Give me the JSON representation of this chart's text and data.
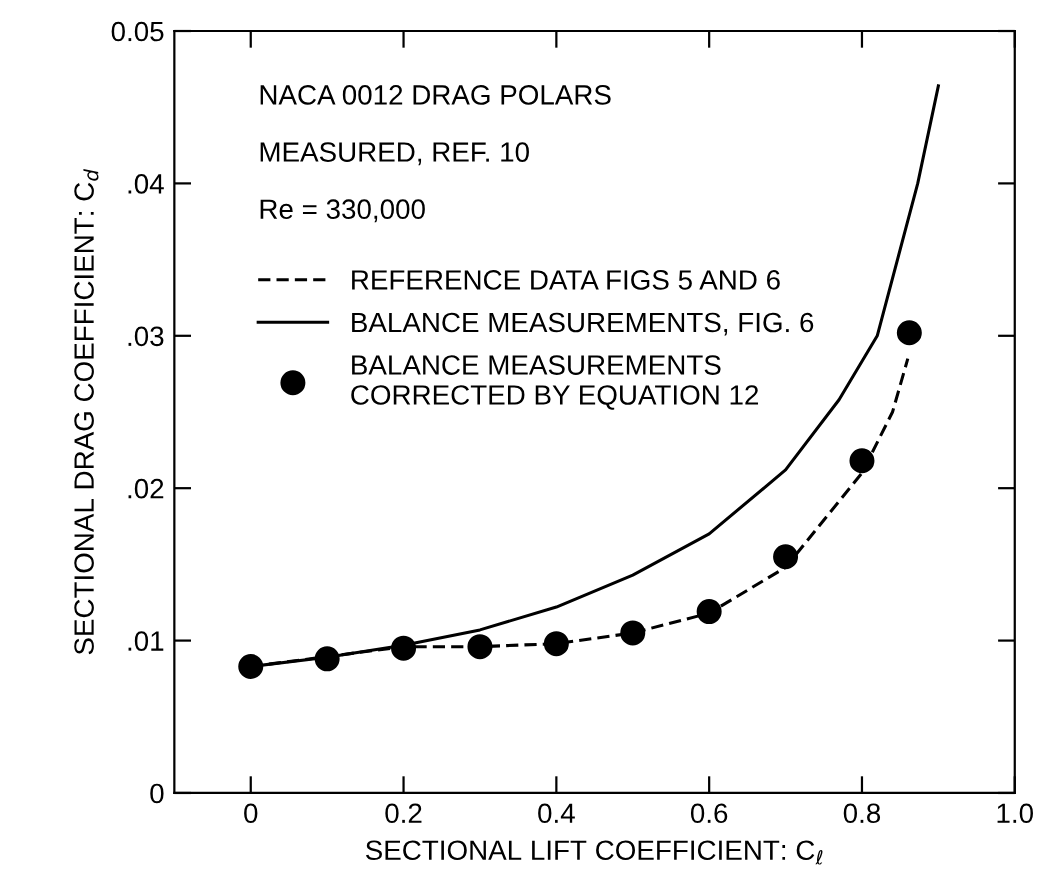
{
  "chart_data": {
    "type": "line",
    "xlabel": "SECTIONAL LIFT COEFFICIENT: C$_{ℓ}$",
    "ylabel": "SECTIONAL DRAG COEFFICIENT: C$_{d}$",
    "annotations": [
      "NACA 0012 DRAG POLARS",
      "MEASURED, REF. 10",
      "Re = 330,000"
    ],
    "series": [
      {
        "name": "REFERENCE DATA FIGS 5 AND 6",
        "color": "#000000",
        "line_style": "dashed",
        "x": [
          0,
          0.2,
          0.3,
          0.4,
          0.5,
          0.6,
          0.7,
          0.8,
          0.84,
          0.86
        ],
        "values": [
          0.0083,
          0.0096,
          0.0096,
          0.0098,
          0.0105,
          0.0118,
          0.0148,
          0.021,
          0.025,
          0.0285
        ]
      },
      {
        "name": "BALANCE MEASUREMENTS, FIG. 6",
        "color": "#000000",
        "line_style": "solid",
        "x": [
          0,
          0.1,
          0.2,
          0.3,
          0.4,
          0.5,
          0.6,
          0.7,
          0.77,
          0.82,
          0.873,
          0.9
        ],
        "values": [
          0.0083,
          0.0089,
          0.0097,
          0.0107,
          0.0122,
          0.0143,
          0.017,
          0.0212,
          0.0258,
          0.03,
          0.04,
          0.0464
        ]
      },
      {
        "name": "BALANCE MEASUREMENTS\nCORRECTED BY EQUATION 12",
        "type": "scatter",
        "marker": "circle",
        "color": "#000000",
        "x": [
          0,
          0.1,
          0.2,
          0.3,
          0.4,
          0.5,
          0.6,
          0.7,
          0.8,
          0.862
        ],
        "values": [
          0.0083,
          0.0088,
          0.0095,
          0.0096,
          0.0098,
          0.0105,
          0.0119,
          0.0155,
          0.0218,
          0.0302
        ]
      }
    ],
    "xlim": [
      -0.1,
      1.0
    ],
    "ylim": [
      0,
      0.05
    ],
    "xticks": [
      0,
      {
        "value": 0.2,
        "label": "0.2"
      },
      {
        "value": 0.4,
        "label": "0.4"
      },
      {
        "value": 0.6,
        "label": "0.6"
      },
      {
        "value": 0.8,
        "label": "0.8"
      },
      {
        "value": 1.0,
        "label": "1.0"
      }
    ],
    "yticks": [
      0,
      {
        "value": 0.01,
        "label": ".01"
      },
      {
        "value": 0.02,
        "label": ".02"
      },
      {
        "value": 0.03,
        "label": ".03"
      },
      {
        "value": 0.04,
        "label": ".04"
      },
      {
        "value": 0.05,
        "label": "0.05"
      }
    ],
    "grid": false,
    "legend": "top left"
  }
}
